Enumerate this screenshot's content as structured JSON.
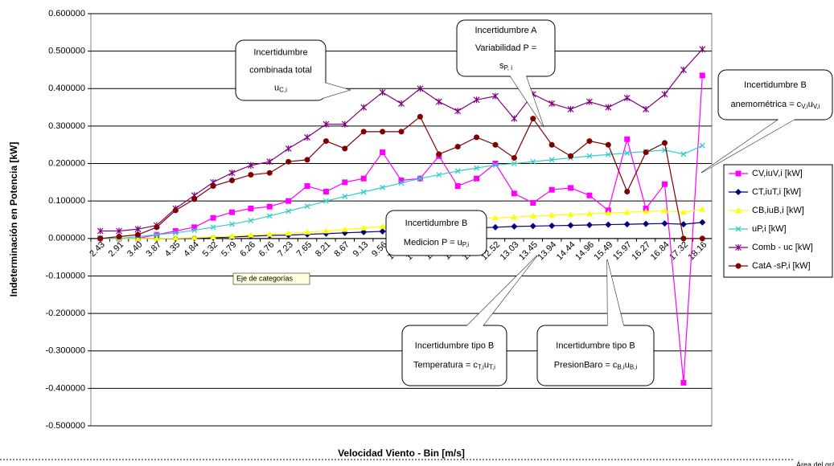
{
  "chart_data": {
    "type": "line",
    "y_label": "Indeterminación en Potencia [kW]",
    "x_label": "Velocidad Viento - Bin [m/s]",
    "categories": [
      "2.43",
      "2.91",
      "3.40",
      "3.87",
      "4.35",
      "4.84",
      "5.32",
      "5.79",
      "6.26",
      "6.76",
      "7.23",
      "7.65",
      "8.21",
      "8.67",
      "9.13",
      "9.56",
      "10.11",
      "10.58",
      "11.07",
      "11.56",
      "12.04",
      "12.52",
      "13.03",
      "13.45",
      "13.94",
      "14.44",
      "14.96",
      "15.49",
      "15.97",
      "16.27",
      "16.84",
      "17.32",
      "18.16"
    ],
    "series": [
      {
        "name": "CV,iuV,i [kW]",
        "color": "#ff00ff",
        "marker": "square",
        "values": [
          0,
          0,
          0,
          0.01,
          0.02,
          0.03,
          0.055,
          0.07,
          0.08,
          0.085,
          0.1,
          0.14,
          0.125,
          0.15,
          0.16,
          0.23,
          0.155,
          0.16,
          0.22,
          0.14,
          0.16,
          0.2,
          0.12,
          0.095,
          0.13,
          0.135,
          0.115,
          0.075,
          0.265,
          0.08,
          0.145,
          -0.385,
          0.435
        ]
      },
      {
        "name": "CT,iuT,i [kW]",
        "color": "#000080",
        "marker": "diamond",
        "values": [
          0,
          0,
          0,
          0,
          0,
          0.001,
          0.002,
          0.004,
          0.006,
          0.008,
          0.009,
          0.011,
          0.013,
          0.015,
          0.017,
          0.019,
          0.02,
          0.022,
          0.024,
          0.026,
          0.028,
          0.03,
          0.032,
          0.033,
          0.034,
          0.035,
          0.036,
          0.037,
          0.038,
          0.039,
          0.04,
          0.038,
          0.043
        ]
      },
      {
        "name": "CB,iuB,i [kW]",
        "color": "#ffff00",
        "marker": "triangle",
        "values": [
          0,
          0,
          0,
          0,
          0.001,
          0.002,
          0.004,
          0.006,
          0.009,
          0.011,
          0.014,
          0.017,
          0.02,
          0.024,
          0.028,
          0.032,
          0.036,
          0.04,
          0.044,
          0.048,
          0.052,
          0.055,
          0.057,
          0.06,
          0.062,
          0.064,
          0.066,
          0.068,
          0.07,
          0.072,
          0.074,
          0.07,
          0.078
        ]
      },
      {
        "name": "uP,i [kW]",
        "color": "#33cccc",
        "marker": "x",
        "values": [
          0,
          0,
          0.005,
          0.01,
          0.015,
          0.022,
          0.03,
          0.038,
          0.048,
          0.06,
          0.073,
          0.086,
          0.1,
          0.112,
          0.124,
          0.136,
          0.148,
          0.16,
          0.17,
          0.18,
          0.188,
          0.196,
          0.2,
          0.205,
          0.21,
          0.215,
          0.22,
          0.224,
          0.228,
          0.232,
          0.236,
          0.225,
          0.248
        ]
      },
      {
        "name": "Comb - uc [kW]",
        "color": "#800080",
        "marker": "star",
        "values": [
          0.02,
          0.02,
          0.025,
          0.035,
          0.08,
          0.115,
          0.15,
          0.175,
          0.195,
          0.205,
          0.24,
          0.27,
          0.305,
          0.305,
          0.35,
          0.39,
          0.36,
          0.4,
          0.365,
          0.34,
          0.37,
          0.38,
          0.32,
          0.385,
          0.36,
          0.345,
          0.365,
          0.35,
          0.375,
          0.345,
          0.385,
          0.45,
          0.505
        ]
      },
      {
        "name": "CatA -sP,i [kW]",
        "color": "#800000",
        "marker": "circle",
        "values": [
          0,
          0.005,
          0.01,
          0.03,
          0.075,
          0.105,
          0.14,
          0.155,
          0.17,
          0.175,
          0.205,
          0.21,
          0.26,
          0.24,
          0.285,
          0.285,
          0.285,
          0.325,
          0.225,
          0.245,
          0.27,
          0.25,
          0.215,
          0.32,
          0.25,
          0.22,
          0.26,
          0.25,
          0.125,
          0.23,
          0.255,
          0,
          0
        ]
      }
    ],
    "ylim": [
      -0.5,
      0.6
    ],
    "yticks": [
      {
        "value": -0.5,
        "label": "-0.500000"
      },
      {
        "value": -0.4,
        "label": "-0.400000"
      },
      {
        "value": -0.3,
        "label": "-0.300000"
      },
      {
        "value": -0.2,
        "label": "-0.200000"
      },
      {
        "value": -0.1,
        "label": "-0.100000"
      },
      {
        "value": 0,
        "label": "0.000000"
      },
      {
        "value": 0.1,
        "label": "0.100000"
      },
      {
        "value": 0.2,
        "label": "0.200000"
      },
      {
        "value": 0.3,
        "label": "0.300000"
      },
      {
        "value": 0.4,
        "label": "0.400000"
      },
      {
        "value": 0.5,
        "label": "0.500000"
      },
      {
        "value": 0.6,
        "label": "0.600000"
      }
    ],
    "grid": true,
    "legend": "right",
    "annotations": [
      {
        "lines": [
          [
            "Incertidumbre"
          ],
          [
            "combinada total"
          ],
          [
            "u",
            "C,i"
          ]
        ]
      },
      {
        "lines": [
          [
            "Incertidumbre A"
          ],
          [
            "Variabilidad P  ="
          ],
          [
            "s",
            "P, i"
          ]
        ]
      },
      {
        "lines": [
          [
            "Incertidumbre B"
          ],
          [
            "anemométrica = c",
            "V,i",
            "u",
            "V,i"
          ]
        ]
      },
      {
        "lines": [
          [
            "Incertidumbre B"
          ],
          [
            "Medicion P  = u",
            "P,i"
          ]
        ]
      },
      {
        "lines": [
          [
            "Incertidumbre tipo B"
          ],
          [
            "Temperatura = c",
            "T,i",
            "u",
            "T,i"
          ]
        ]
      },
      {
        "lines": [
          [
            "Incertidumbre tipo B"
          ],
          [
            "PresionBaro = c",
            "B,i",
            "u",
            "B,i"
          ]
        ]
      }
    ],
    "tooltips": [
      "Eje de categorías",
      "Área del gráfico."
    ]
  }
}
